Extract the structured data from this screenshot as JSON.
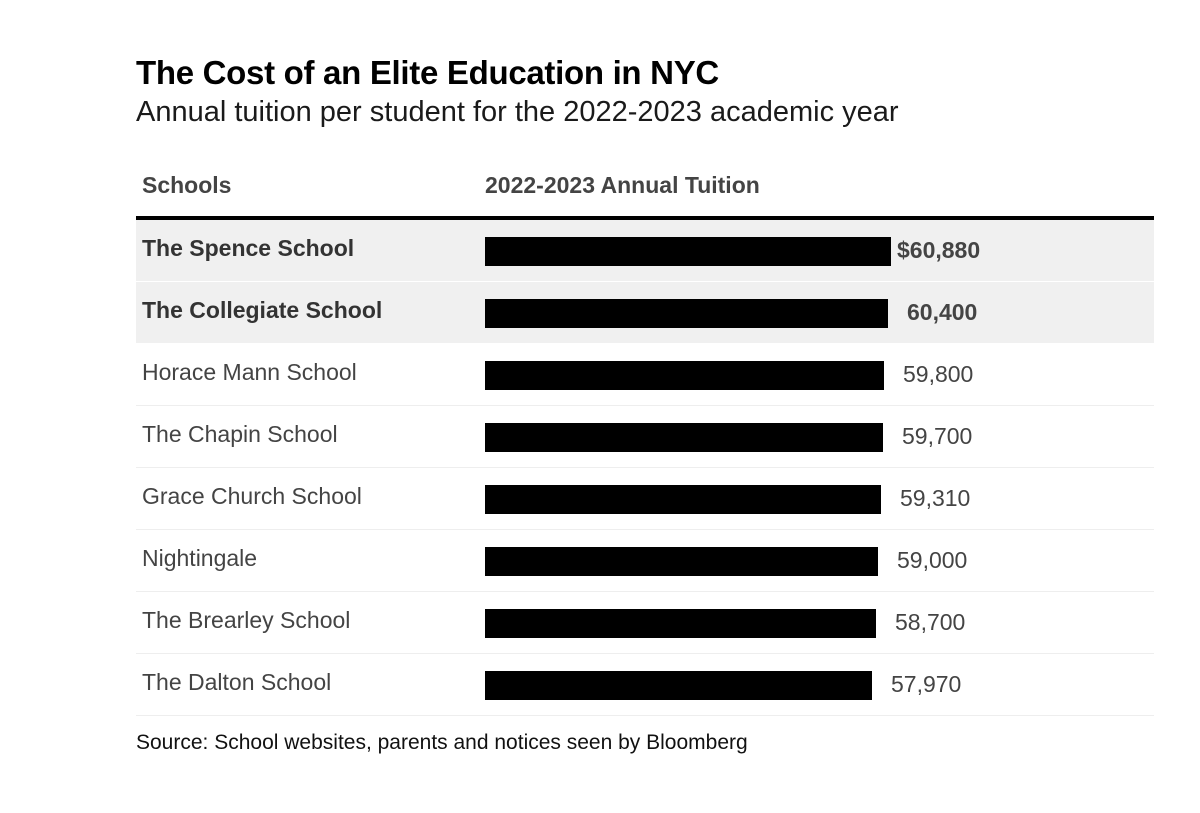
{
  "chart_data": {
    "type": "bar",
    "title": "The Cost of an Elite Education in NYC",
    "subtitle": "Annual tuition per student for the 2022-2023 academic year",
    "column_headers": {
      "school": "Schools",
      "tuition": "2022-2023 Annual Tuition"
    },
    "categories": [
      "The Spence School",
      "The Collegiate School",
      "Horace Mann School",
      "The Chapin School",
      "Grace Church School",
      "Nightingale",
      "The Brearley School",
      "The Dalton School"
    ],
    "values": [
      60880,
      60400,
      59800,
      59700,
      59310,
      59000,
      58700,
      57970
    ],
    "value_labels": [
      "$60,880",
      "60,400",
      "59,800",
      "59,700",
      "59,310",
      "59,000",
      "58,700",
      "57,970"
    ],
    "highlighted": [
      true,
      true,
      false,
      false,
      false,
      false,
      false,
      false
    ],
    "xlim": [
      0,
      60880
    ],
    "grid": false,
    "bar_color": "#000000",
    "highlight_row_color": "#f0f0f0",
    "source": "Source: School websites, parents and notices seen by Bloomberg"
  }
}
